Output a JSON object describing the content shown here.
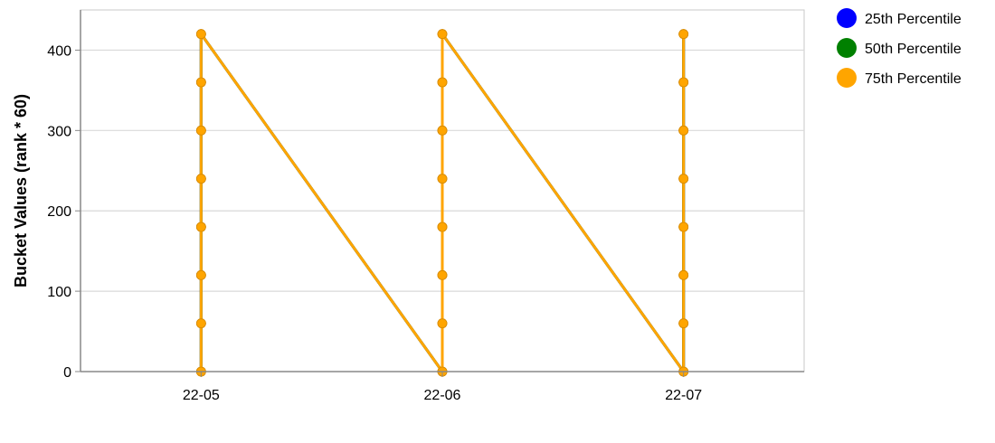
{
  "chart_data": {
    "type": "line",
    "title": "",
    "xlabel": "",
    "ylabel": "Bucket Values (rank * 60)",
    "x_categories": [
      "22-05",
      "22-06",
      "22-07"
    ],
    "x_domain": [
      -0.5,
      2.5
    ],
    "ylim": [
      0,
      450
    ],
    "y_ticks": [
      0,
      100,
      200,
      300,
      400
    ],
    "grid": true,
    "legend_position": "top-right",
    "series": [
      {
        "name": "25th Percentile",
        "color": "#0000ff",
        "points": [
          {
            "x": "22-05",
            "y": 0
          },
          {
            "x": "22-05",
            "y": 60
          },
          {
            "x": "22-05",
            "y": 120
          },
          {
            "x": "22-05",
            "y": 180
          },
          {
            "x": "22-05",
            "y": 240
          },
          {
            "x": "22-05",
            "y": 300
          },
          {
            "x": "22-05",
            "y": 360
          },
          {
            "x": "22-05",
            "y": 420
          },
          {
            "x": "22-06",
            "y": 0
          },
          {
            "x": "22-06",
            "y": 60
          },
          {
            "x": "22-06",
            "y": 120
          },
          {
            "x": "22-06",
            "y": 180
          },
          {
            "x": "22-06",
            "y": 240
          },
          {
            "x": "22-06",
            "y": 300
          },
          {
            "x": "22-06",
            "y": 360
          },
          {
            "x": "22-06",
            "y": 420
          },
          {
            "x": "22-07",
            "y": 0
          },
          {
            "x": "22-07",
            "y": 60
          },
          {
            "x": "22-07",
            "y": 120
          },
          {
            "x": "22-07",
            "y": 180
          },
          {
            "x": "22-07",
            "y": 240
          },
          {
            "x": "22-07",
            "y": 300
          },
          {
            "x": "22-07",
            "y": 360
          },
          {
            "x": "22-07",
            "y": 420
          }
        ]
      },
      {
        "name": "50th Percentile",
        "color": "#008000",
        "points": [
          {
            "x": "22-05",
            "y": 0
          },
          {
            "x": "22-05",
            "y": 60
          },
          {
            "x": "22-05",
            "y": 120
          },
          {
            "x": "22-05",
            "y": 180
          },
          {
            "x": "22-05",
            "y": 240
          },
          {
            "x": "22-05",
            "y": 300
          },
          {
            "x": "22-05",
            "y": 360
          },
          {
            "x": "22-05",
            "y": 420
          },
          {
            "x": "22-06",
            "y": 0
          },
          {
            "x": "22-06",
            "y": 60
          },
          {
            "x": "22-06",
            "y": 120
          },
          {
            "x": "22-06",
            "y": 180
          },
          {
            "x": "22-06",
            "y": 240
          },
          {
            "x": "22-06",
            "y": 300
          },
          {
            "x": "22-06",
            "y": 360
          },
          {
            "x": "22-06",
            "y": 420
          },
          {
            "x": "22-07",
            "y": 0
          },
          {
            "x": "22-07",
            "y": 60
          },
          {
            "x": "22-07",
            "y": 120
          },
          {
            "x": "22-07",
            "y": 180
          },
          {
            "x": "22-07",
            "y": 240
          },
          {
            "x": "22-07",
            "y": 300
          },
          {
            "x": "22-07",
            "y": 360
          },
          {
            "x": "22-07",
            "y": 420
          }
        ]
      },
      {
        "name": "75th Percentile",
        "color": "#ffa500",
        "points": [
          {
            "x": "22-05",
            "y": 0
          },
          {
            "x": "22-05",
            "y": 60
          },
          {
            "x": "22-05",
            "y": 120
          },
          {
            "x": "22-05",
            "y": 180
          },
          {
            "x": "22-05",
            "y": 240
          },
          {
            "x": "22-05",
            "y": 300
          },
          {
            "x": "22-05",
            "y": 360
          },
          {
            "x": "22-05",
            "y": 420
          },
          {
            "x": "22-06",
            "y": 0
          },
          {
            "x": "22-06",
            "y": 60
          },
          {
            "x": "22-06",
            "y": 120
          },
          {
            "x": "22-06",
            "y": 180
          },
          {
            "x": "22-06",
            "y": 240
          },
          {
            "x": "22-06",
            "y": 300
          },
          {
            "x": "22-06",
            "y": 360
          },
          {
            "x": "22-06",
            "y": 420
          },
          {
            "x": "22-07",
            "y": 0
          },
          {
            "x": "22-07",
            "y": 60
          },
          {
            "x": "22-07",
            "y": 120
          },
          {
            "x": "22-07",
            "y": 180
          },
          {
            "x": "22-07",
            "y": 240
          },
          {
            "x": "22-07",
            "y": 300
          },
          {
            "x": "22-07",
            "y": 360
          },
          {
            "x": "22-07",
            "y": 420
          }
        ]
      }
    ]
  }
}
